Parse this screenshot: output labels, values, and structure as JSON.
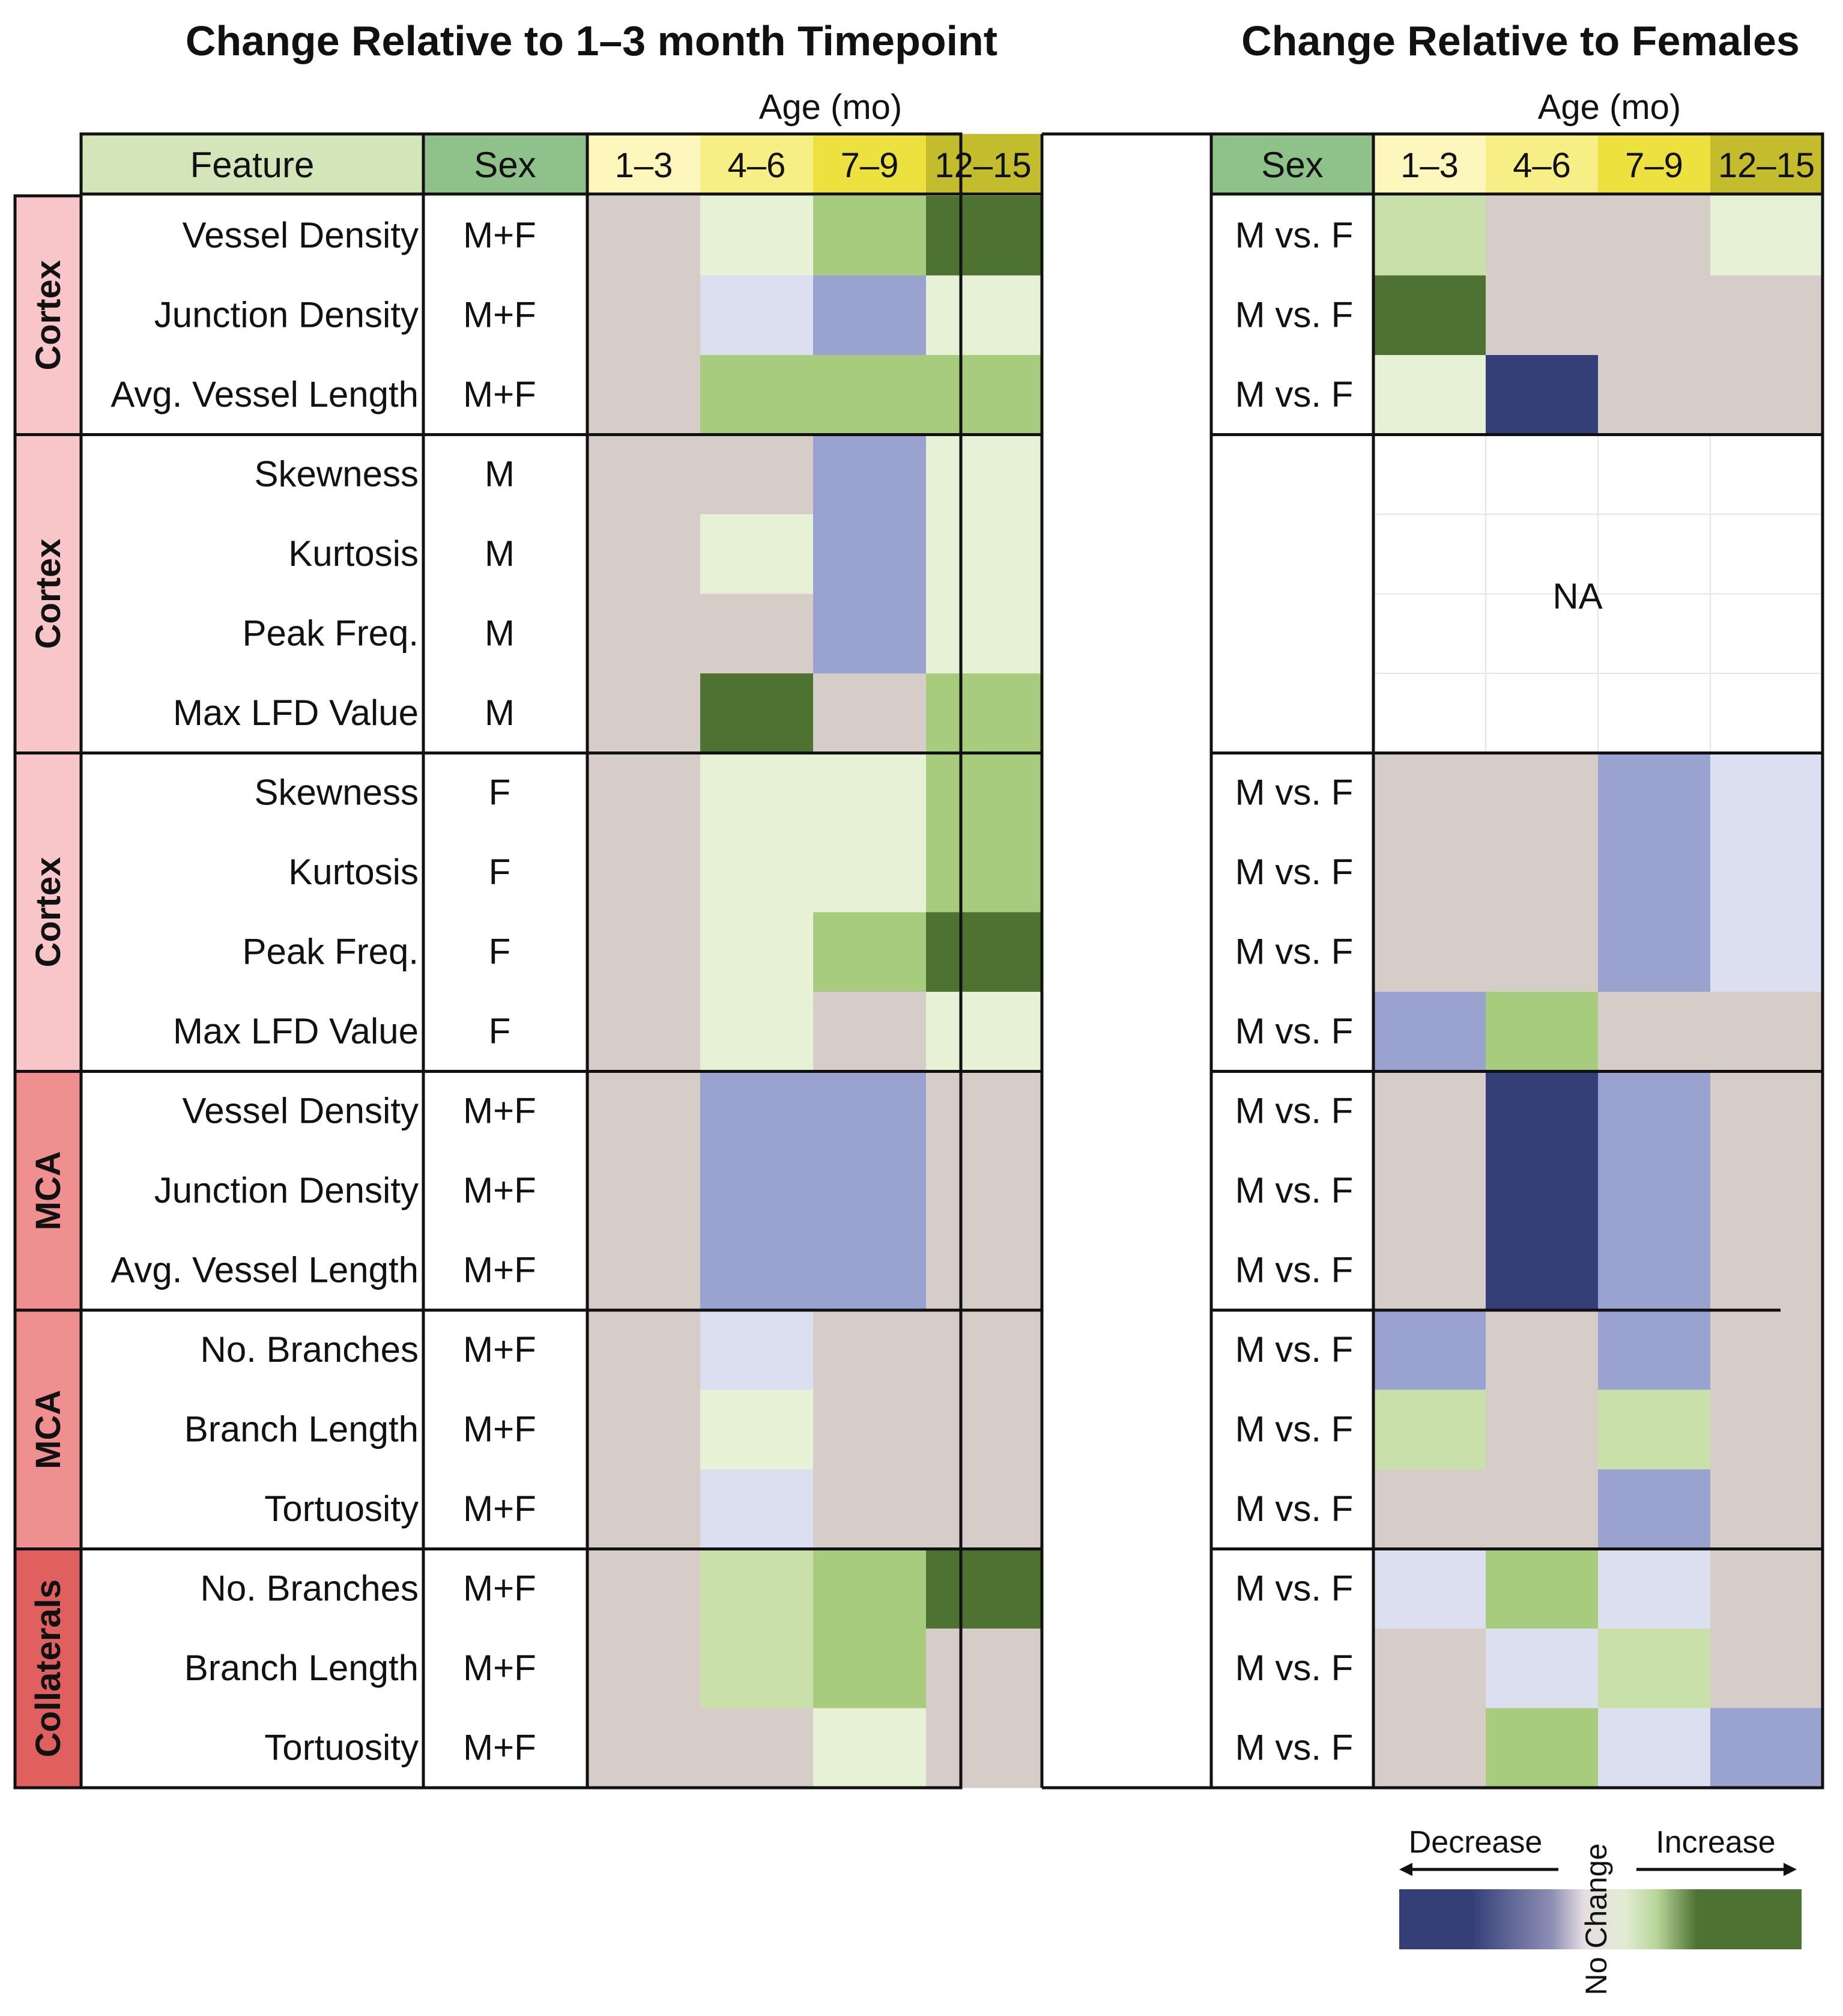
{
  "chart_data": {
    "type": "heatmap",
    "title_left": "Change Relative to 1–3 month Timepoint",
    "title_right": "Change Relative to Females",
    "age_label": "Age (mo)",
    "header_feature": "Feature",
    "header_sex": "Sex",
    "ages": [
      "1–3",
      "4–6",
      "7–9",
      "12–15"
    ],
    "scale_note": "cell values: -3 strong decrease … 0 no change … +3 strong increase",
    "groups": [
      {
        "region": "Cortex",
        "rows": 3,
        "features": [
          "Vessel Density",
          "Junction Density",
          "Avg. Vessel Length"
        ],
        "sex": [
          "M+F",
          "M+F",
          "M+F"
        ],
        "comparison": [
          "M vs. F",
          "M vs. F",
          "M vs. F"
        ]
      },
      {
        "region": "Cortex",
        "rows": 4,
        "features": [
          "Skewness",
          "Kurtosis",
          "Peak Freq.",
          "Max LFD Value"
        ],
        "sex": [
          "M",
          "M",
          "M",
          "M"
        ],
        "comparison": [
          "",
          "",
          "",
          ""
        ]
      },
      {
        "region": "Cortex",
        "rows": 4,
        "features": [
          "Skewness",
          "Kurtosis",
          "Peak Freq.",
          "Max LFD Value"
        ],
        "sex": [
          "F",
          "F",
          "F",
          "F"
        ],
        "comparison": [
          "M vs. F",
          "M vs. F",
          "M vs. F",
          "M vs. F"
        ]
      },
      {
        "region": "MCA",
        "rows": 3,
        "features": [
          "Vessel Density",
          "Junction Density",
          "Avg. Vessel Length"
        ],
        "sex": [
          "M+F",
          "M+F",
          "M+F"
        ],
        "comparison": [
          "M vs. F",
          "M vs. F",
          "M vs. F"
        ]
      },
      {
        "region": "MCA",
        "rows": 3,
        "features": [
          "No. Branches",
          "Branch Length",
          "Tortuosity"
        ],
        "sex": [
          "M+F",
          "M+F",
          "M+F"
        ],
        "comparison": [
          "M vs. F",
          "M vs. F",
          "M vs. F"
        ]
      },
      {
        "region": "Collaterals",
        "rows": 3,
        "features": [
          "No. Branches",
          "Branch Length",
          "Tortuosity"
        ],
        "sex": [
          "M+F",
          "M+F",
          "M+F"
        ],
        "comparison": [
          "M vs. F",
          "M vs. F",
          "M vs. F"
        ]
      }
    ],
    "left_values": [
      [
        0,
        1,
        2,
        3
      ],
      [
        0,
        -1,
        -2,
        1
      ],
      [
        0,
        2,
        2,
        2
      ],
      [
        0,
        0,
        -2,
        1
      ],
      [
        0,
        1,
        -2,
        1
      ],
      [
        0,
        0,
        -2,
        1
      ],
      [
        0,
        3,
        0,
        2
      ],
      [
        0,
        1,
        1,
        2
      ],
      [
        0,
        1,
        1,
        2
      ],
      [
        0,
        1,
        2,
        3
      ],
      [
        0,
        1,
        0,
        1
      ],
      [
        0,
        -2,
        -2.5,
        0
      ],
      [
        0,
        -2,
        -2.5,
        0
      ],
      [
        0,
        -2,
        -2,
        0
      ],
      [
        0,
        -1,
        0,
        0
      ],
      [
        0,
        1,
        0,
        0
      ],
      [
        0,
        -1,
        0,
        0
      ],
      [
        0,
        1.5,
        2,
        3
      ],
      [
        0,
        1.5,
        2,
        0
      ],
      [
        0,
        0,
        1,
        0
      ]
    ],
    "right_values": [
      [
        1.5,
        0,
        0,
        1
      ],
      [
        3,
        0,
        0,
        0
      ],
      [
        1,
        -3,
        0,
        0
      ],
      [
        null,
        null,
        null,
        null
      ],
      [
        null,
        null,
        null,
        null
      ],
      [
        null,
        null,
        null,
        null
      ],
      [
        null,
        null,
        null,
        null
      ],
      [
        0,
        0,
        -2.5,
        -1
      ],
      [
        0,
        0,
        -2.5,
        -1
      ],
      [
        0,
        0,
        -2.5,
        -1
      ],
      [
        -2,
        2,
        0,
        0
      ],
      [
        0,
        -3,
        -2.5,
        0
      ],
      [
        0,
        -3,
        -2.5,
        0
      ],
      [
        0,
        -3,
        -2.5,
        0
      ],
      [
        -2.5,
        0,
        -2.5,
        0
      ],
      [
        1.5,
        0,
        1.5,
        0
      ],
      [
        0,
        0,
        -2.5,
        0
      ],
      [
        -1,
        2,
        -1,
        0
      ],
      [
        0,
        -1,
        1.5,
        0
      ],
      [
        0,
        2,
        -1,
        -2.5
      ]
    ],
    "na_label": "NA",
    "legend": {
      "decrease_label": "Decrease",
      "increase_label": "Increase",
      "no_change_label": "No Change"
    },
    "colors": {
      "decrease_3": "#343f78",
      "decrease_2": "#9aa3cf",
      "decrease_1": "#bcc1e1",
      "decrease_0": "#dcdff0",
      "no_change": "#d6ccc8",
      "increase_0": "#e6f1d5",
      "increase_1": "#c9e0ab",
      "increase_2": "#a8cc7e",
      "increase_3": "#4d7232",
      "region_cortex": "#f8c6c8",
      "region_mca": "#ef8f8f",
      "region_collaterals": "#e06060",
      "feature_header": "#d2e6b9",
      "sex_header": "#8fc18b",
      "age_1_3": "#fdf7bd",
      "age_4_6": "#f7ef86",
      "age_7_9": "#ece13f",
      "age_12_15": "#c3bd2e"
    }
  }
}
